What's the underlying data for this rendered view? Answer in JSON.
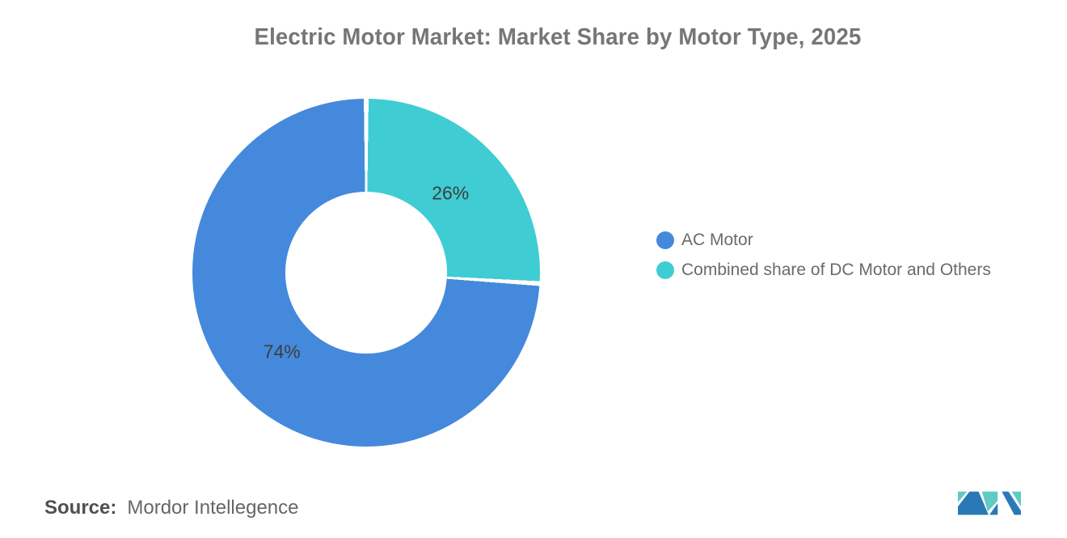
{
  "chart_data": {
    "type": "pie",
    "title": "Electric Motor Market: Market Share by Motor Type, 2025",
    "slices": [
      {
        "name": "AC Motor",
        "value": 74,
        "label": "74%",
        "color": "#4589DC"
      },
      {
        "name": "Combined share of DC Motor and Others",
        "value": 26,
        "label": "26%",
        "color": "#3FCDD3"
      }
    ],
    "draw_order": [
      1,
      0
    ],
    "start_angle_deg": 0,
    "direction": "clockwise",
    "donut_hole_ratio": 0.465,
    "slice_border_color": "#ffffff",
    "legend_position": "right",
    "data_labels": "percent",
    "background": "#ffffff"
  },
  "source": {
    "prefix": "Source:",
    "text": "Mordor Intellegence"
  },
  "logo": {
    "name": "mordor-intelligence-logo",
    "blue": "#2A79B7",
    "teal": "#60CAC5"
  }
}
